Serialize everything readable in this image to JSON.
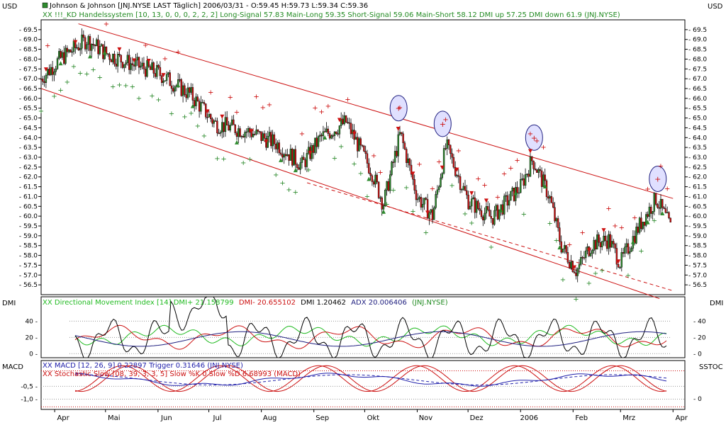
{
  "header": {
    "usd_left": "USD",
    "usd_right": "USD",
    "title_line": "Johnson & Johnson [JNJ.NYSE LAST Täglich] 2006/03/31 - O:59.45 H:59.73 L:59.34 C:59.36",
    "system_line": "XX !!!_KD Handelssystem [10, 13, 0, 0, 0, 2, 2, 2] Long-Signal 57.83 Main-Long 59.35 Short-Signal 59.06 Main-Short 58.12 DMI up 57.25 DMI down 61.9 (JNJ.NYSE)"
  },
  "dmi_panel": {
    "label_left": "DMI",
    "label_right": "DMI",
    "legend_green": "XX Directional Movement Index [14] DMI+ 21.158799",
    "legend_red": "DMI- 20.655102",
    "legend_black": "DMI 1.20462",
    "legend_navy": "ADX 20.006406",
    "legend_src": "(JNJ.NYSE)"
  },
  "macd_panel": {
    "label_left": "MACD",
    "label_right": "SSTOC",
    "legend_macd": "XX MACD [12, 26, 9] 0.22897 Trigger 0.31646 (JNJ.NYSE)",
    "legend_stoch": "XX Stochastic Slow [08, 39, 3, 3, 5] Slow %K 0 Slow %D 6.68993 (MACD)"
  },
  "colors": {
    "up_candle": "#2e8b2e",
    "down_candle": "#cc1111",
    "channel": "#cc1111",
    "dmi_plus": "#22bb22",
    "dmi_minus": "#cc1111",
    "adx": "#202080",
    "macd": "#2020aa",
    "stoch": "#cc1111",
    "highlight_circle": "#e0e0ff"
  },
  "chart_data": [
    {
      "type": "candlestick",
      "name": "price",
      "yticks": [
        "69.5",
        "69.0",
        "68.5",
        "68.0",
        "67.5",
        "67.0",
        "66.5",
        "66.0",
        "65.5",
        "65.0",
        "64.5",
        "64.0",
        "63.5",
        "63.0",
        "62.5",
        "62.0",
        "61.5",
        "61.0",
        "60.5",
        "60.0",
        "59.5",
        "59.0",
        "58.5",
        "58.0",
        "57.5",
        "57.0",
        "56.5"
      ],
      "ylim": [
        56.0,
        70.0
      ],
      "x_months": [
        "Apr",
        "Mai",
        "Jun",
        "Jul",
        "Aug",
        "Sep",
        "Okt",
        "Nov",
        "Dez",
        "2006",
        "Feb",
        "Mrz",
        "Apr"
      ],
      "last_bar": {
        "date": "2006/03/31",
        "open": 59.45,
        "high": 59.73,
        "low": 59.34,
        "close": 59.36
      },
      "close_path": [
        {
          "x": "2005-03-24",
          "y": 67.0
        },
        {
          "x": "2005-04-04",
          "y": 68.0
        },
        {
          "x": "2005-04-20",
          "y": 69.0
        },
        {
          "x": "2005-05-01",
          "y": 68.3
        },
        {
          "x": "2005-05-15",
          "y": 67.8
        },
        {
          "x": "2005-06-01",
          "y": 67.3
        },
        {
          "x": "2005-06-20",
          "y": 66.2
        },
        {
          "x": "2005-07-05",
          "y": 64.7
        },
        {
          "x": "2005-07-25",
          "y": 64.3
        },
        {
          "x": "2005-08-10",
          "y": 63.7
        },
        {
          "x": "2005-08-25",
          "y": 62.6
        },
        {
          "x": "2005-09-05",
          "y": 64.0
        },
        {
          "x": "2005-09-20",
          "y": 64.8
        },
        {
          "x": "2005-10-05",
          "y": 62.3
        },
        {
          "x": "2005-10-12",
          "y": 60.6
        },
        {
          "x": "2005-10-22",
          "y": 64.2
        },
        {
          "x": "2005-11-01",
          "y": 61.0
        },
        {
          "x": "2005-11-10",
          "y": 60.0
        },
        {
          "x": "2005-11-18",
          "y": 63.6
        },
        {
          "x": "2005-12-01",
          "y": 60.8
        },
        {
          "x": "2005-12-15",
          "y": 59.9
        },
        {
          "x": "2006-01-01",
          "y": 61.5
        },
        {
          "x": "2006-01-08",
          "y": 62.9
        },
        {
          "x": "2006-01-18",
          "y": 61.0
        },
        {
          "x": "2006-01-25",
          "y": 58.5
        },
        {
          "x": "2006-02-03",
          "y": 57.2
        },
        {
          "x": "2006-02-12",
          "y": 58.6
        },
        {
          "x": "2006-02-22",
          "y": 58.8
        },
        {
          "x": "2006-03-01",
          "y": 57.6
        },
        {
          "x": "2006-03-12",
          "y": 59.5
        },
        {
          "x": "2006-03-22",
          "y": 60.9
        },
        {
          "x": "2006-03-31",
          "y": 59.36
        }
      ],
      "channel_lines": [
        {
          "name": "upper",
          "from": {
            "x": "2005-04-15",
            "y": 69.8
          },
          "to": {
            "x": "2006-04-01",
            "y": 60.9
          }
        },
        {
          "name": "lower",
          "from": {
            "x": "2005-03-24",
            "y": 66.5
          },
          "to": {
            "x": "2006-03-24",
            "y": 55.8
          }
        },
        {
          "name": "middle-dashed",
          "from": {
            "x": "2005-08-28",
            "y": 61.7
          },
          "to": {
            "x": "2006-04-01",
            "y": 56.2
          }
        }
      ],
      "circled_signals": [
        {
          "x": "2005-10-21",
          "y": 65.5
        },
        {
          "x": "2005-11-16",
          "y": 64.7
        },
        {
          "x": "2006-01-09",
          "y": 64.0
        },
        {
          "x": "2006-03-23",
          "y": 61.9
        }
      ]
    },
    {
      "type": "line",
      "name": "dmi",
      "yticks": [
        "40",
        "20",
        "0"
      ],
      "ylim": [
        -5,
        70
      ],
      "series_names": [
        "DMI+",
        "DMI-",
        "DMI",
        "ADX"
      ]
    },
    {
      "type": "line",
      "name": "macd_stochastic",
      "yticks_left": [
        "-0,5",
        "-1,0"
      ],
      "yticks_right": [
        "0"
      ],
      "ylim": [
        -1.4,
        0.5
      ],
      "series_names": [
        "MACD",
        "Trigger",
        "Slow %K",
        "Slow %D"
      ]
    }
  ]
}
